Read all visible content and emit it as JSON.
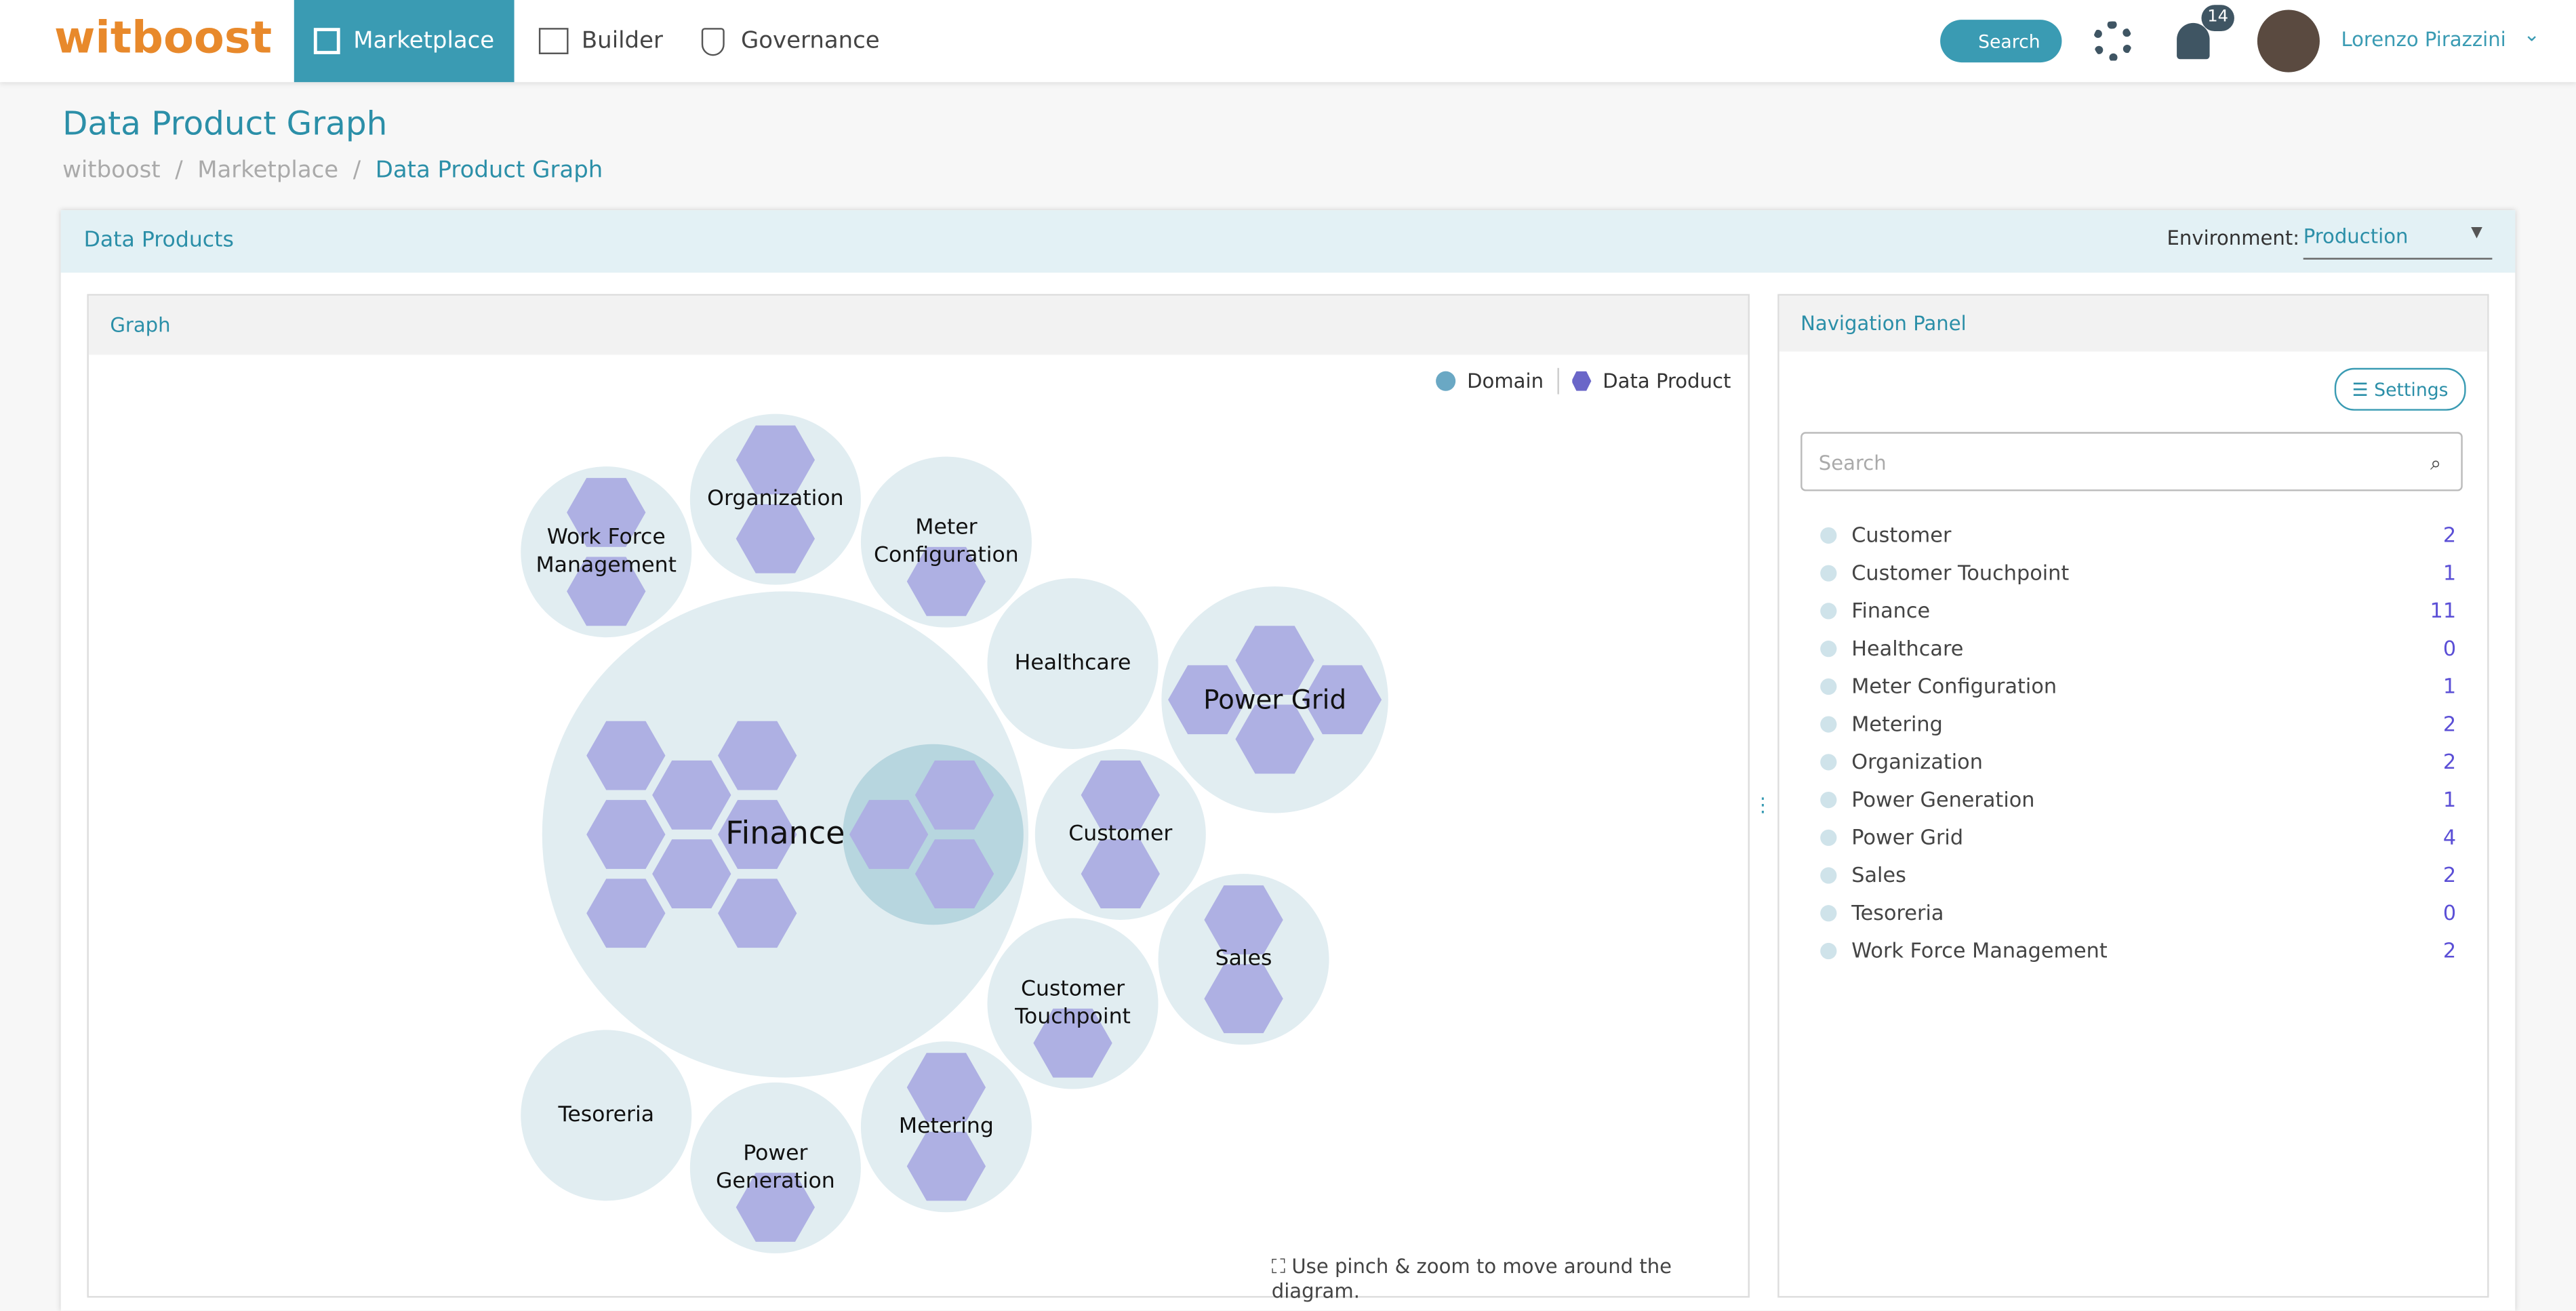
{
  "nav": {
    "logo": "witboost",
    "tabs": [
      "Marketplace",
      "Builder",
      "Governance"
    ],
    "search": "Search",
    "notifications": "14",
    "user": "Lorenzo Pirazzini"
  },
  "header": {
    "title": "Data Product Graph",
    "breadcrumb": [
      "witboost",
      "Marketplace",
      "Data Product Graph"
    ]
  },
  "section": {
    "title": "Data Products",
    "environment_label": "Environment:",
    "environment": "Production"
  },
  "graph": {
    "title": "Graph",
    "legend": [
      "Domain",
      "Data Product"
    ],
    "nodes": [
      {
        "label": "Work Force Management"
      },
      {
        "label": "Organization"
      },
      {
        "label": "Meter Configuration"
      },
      {
        "label": "Healthcare"
      },
      {
        "label": "Power Grid"
      },
      {
        "label": "Finance"
      },
      {
        "label": "Customer"
      },
      {
        "label": "Sales"
      },
      {
        "label": "Customer Touchpoint"
      },
      {
        "label": "Tesoreria"
      },
      {
        "label": "Power Generation"
      },
      {
        "label": "Metering"
      }
    ],
    "hint": "Use pinch & zoom to move around the diagram."
  },
  "navigation": {
    "title": "Navigation Panel",
    "settings": "Settings",
    "search_placeholder": "Search",
    "items": [
      {
        "label": "Customer",
        "count": "2"
      },
      {
        "label": "Customer Touchpoint",
        "count": "1"
      },
      {
        "label": "Finance",
        "count": "11"
      },
      {
        "label": "Healthcare",
        "count": "0"
      },
      {
        "label": "Meter Configuration",
        "count": "1"
      },
      {
        "label": "Metering",
        "count": "2"
      },
      {
        "label": "Organization",
        "count": "2"
      },
      {
        "label": "Power Generation",
        "count": "1"
      },
      {
        "label": "Power Grid",
        "count": "4"
      },
      {
        "label": "Sales",
        "count": "2"
      },
      {
        "label": "Tesoreria",
        "count": "0"
      },
      {
        "label": "Work Force Management",
        "count": "2"
      }
    ]
  }
}
